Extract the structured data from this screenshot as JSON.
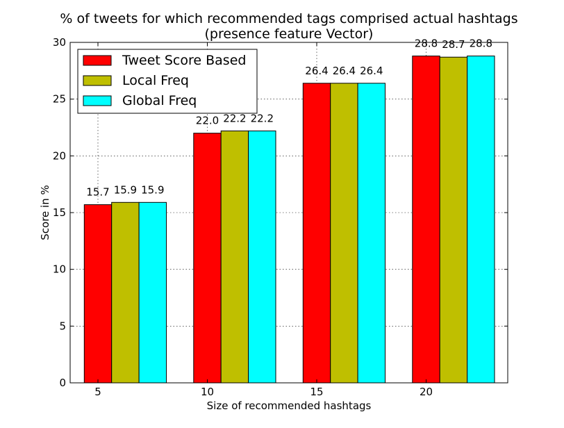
{
  "chart_data": {
    "type": "bar",
    "title": "% of tweets for which recommended tags comprised actual hashtags",
    "subtitle": "(presence feature Vector)",
    "xlabel": "Size of recommended hashtags",
    "ylabel": "Score in %",
    "categories": [
      "5",
      "10",
      "15",
      "20"
    ],
    "series": [
      {
        "name": "Tweet Score Based",
        "color": "#ff0000",
        "values": [
          15.7,
          22.0,
          26.4,
          28.8
        ]
      },
      {
        "name": "Local Freq",
        "color": "#bfbf00",
        "values": [
          15.9,
          22.2,
          26.4,
          28.7
        ]
      },
      {
        "name": "Global Freq",
        "color": "#00ffff",
        "values": [
          15.9,
          22.2,
          26.4,
          28.8
        ]
      }
    ],
    "data_labels": [
      [
        "15.7",
        "22.0",
        "26.4",
        "28.8"
      ],
      [
        "15.9",
        "22.2",
        "26.4",
        "28.7"
      ],
      [
        "15.9",
        "22.2",
        "26.4",
        "28.8"
      ]
    ],
    "ylim": [
      0,
      30
    ],
    "yticks": [
      0,
      5,
      10,
      15,
      20,
      25,
      30
    ],
    "ytick_labels": [
      "0",
      "5",
      "10",
      "15",
      "20",
      "25",
      "30"
    ],
    "grid": true,
    "legend_position": "top-left"
  }
}
